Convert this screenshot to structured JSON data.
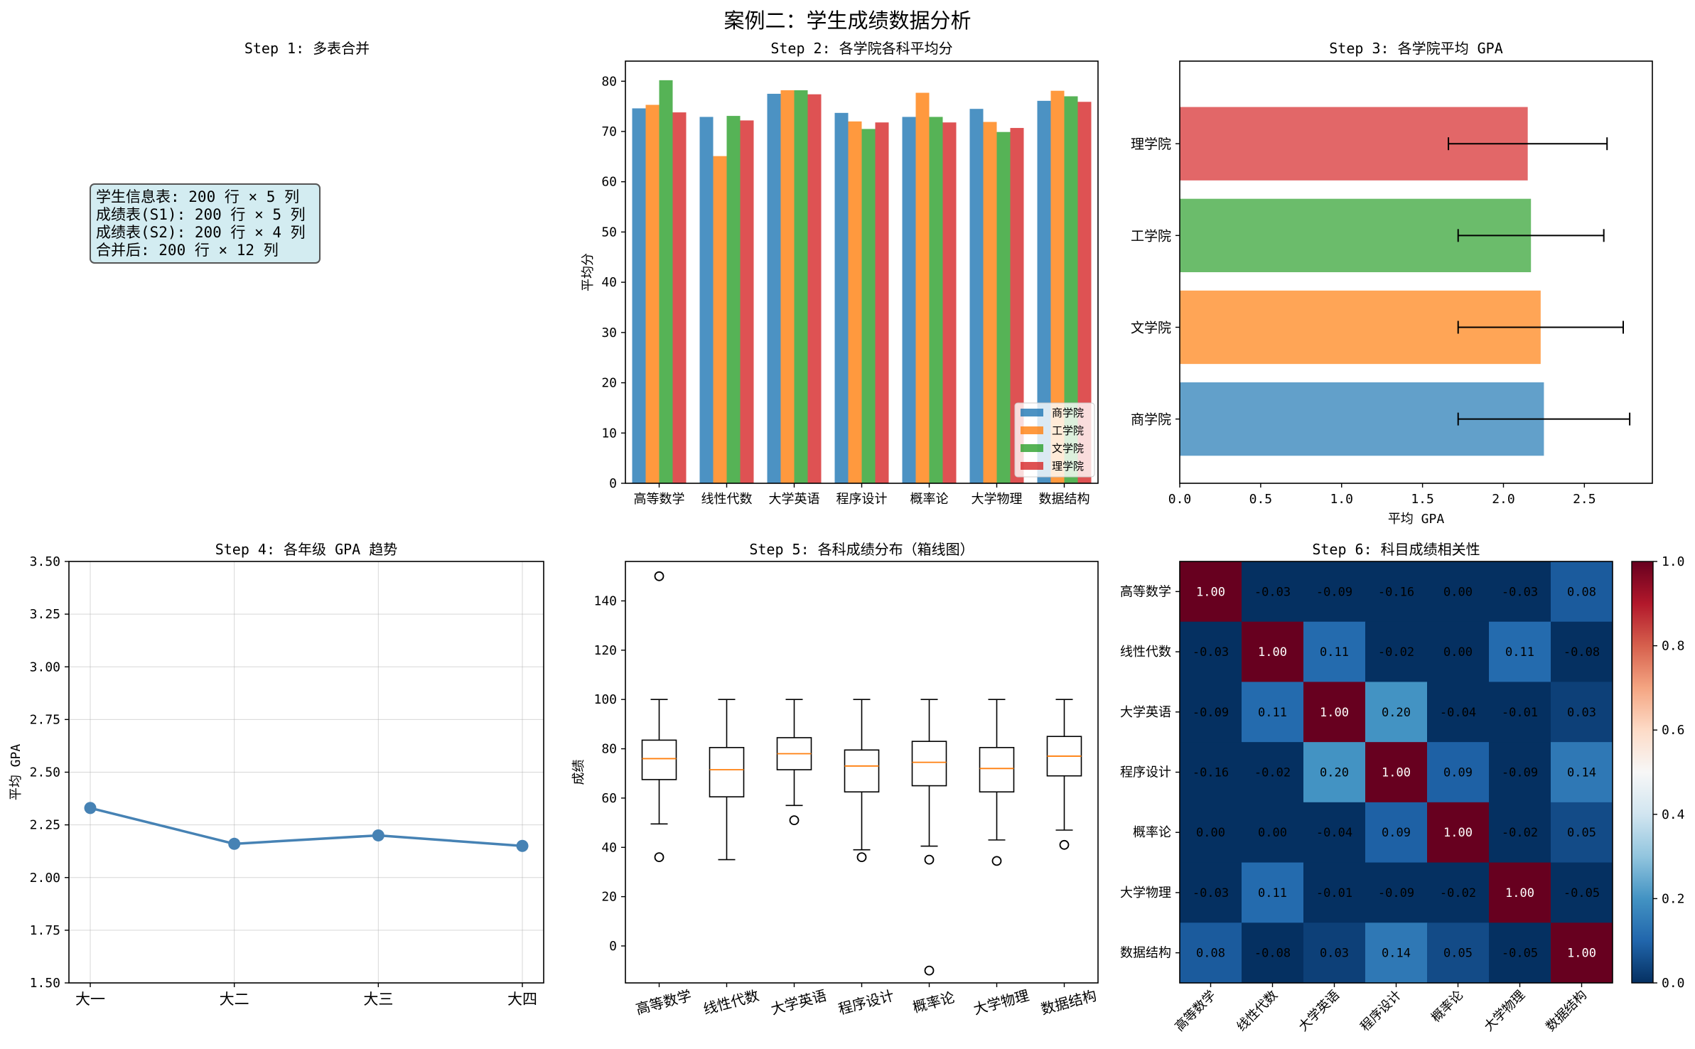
{
  "figure_title": "案例二：学生成绩数据分析",
  "colleges": [
    "商学院",
    "工学院",
    "文学院",
    "理学院"
  ],
  "subjects": [
    "高等数学",
    "线性代数",
    "大学英语",
    "程序设计",
    "概率论",
    "大学物理",
    "数据结构"
  ],
  "colors": {
    "college": [
      "#1f77b4",
      "#ff7f0e",
      "#2ca02c",
      "#d62728"
    ],
    "line": "#4682b4",
    "median": "#ff7f0e"
  },
  "chart_data": [
    {
      "type": "table",
      "title": "Step 1: 多表合并",
      "lines": [
        "学生信息表: 200 行 × 5 列",
        "成绩表(S1): 200 行 × 5 列",
        "成绩表(S2): 200 行 × 4 列",
        "",
        "合并后: 200 行 × 12 列"
      ]
    },
    {
      "type": "bar",
      "title": "Step 2: 各学院各科平均分",
      "ylabel": "平均分",
      "xlabel": "",
      "ylim": [
        0,
        84
      ],
      "yticks": [
        0,
        10,
        20,
        30,
        40,
        50,
        60,
        70,
        80
      ],
      "categories": [
        "高等数学",
        "线性代数",
        "大学英语",
        "程序设计",
        "概率论",
        "大学物理",
        "数据结构"
      ],
      "legend": "lower right",
      "series": [
        {
          "name": "商学院",
          "values": [
            74.6,
            72.9,
            77.5,
            73.7,
            72.9,
            74.5,
            76.1
          ]
        },
        {
          "name": "工学院",
          "values": [
            75.3,
            65.1,
            78.2,
            72.0,
            77.7,
            71.9,
            78.1
          ]
        },
        {
          "name": "文学院",
          "values": [
            80.2,
            73.1,
            78.2,
            70.5,
            72.9,
            69.9,
            77.0
          ]
        },
        {
          "name": "理学院",
          "values": [
            73.8,
            72.2,
            77.4,
            71.8,
            71.8,
            70.7,
            75.9
          ]
        }
      ]
    },
    {
      "type": "bar",
      "title": "Step 3: 各学院平均 GPA",
      "orientation": "horizontal",
      "xlabel": "平均 GPA",
      "ylabel": "",
      "xlim": [
        0,
        2.92
      ],
      "xticks": [
        "0.0",
        "0.5",
        "1.0",
        "1.5",
        "2.0",
        "2.5"
      ],
      "categories": [
        "商学院",
        "文学院",
        "工学院",
        "理学院"
      ],
      "values": [
        2.25,
        2.23,
        2.17,
        2.15
      ],
      "errors": [
        0.53,
        0.51,
        0.45,
        0.49
      ]
    },
    {
      "type": "line",
      "title": "Step 4: 各年级 GPA 趋势",
      "ylabel": "平均 GPA",
      "xlabel": "",
      "ylim": [
        1.5,
        3.5
      ],
      "yticks": [
        "1.50",
        "1.75",
        "2.00",
        "2.25",
        "2.50",
        "2.75",
        "3.00",
        "3.25",
        "3.50"
      ],
      "grid": true,
      "x": [
        "大一",
        "大二",
        "大三",
        "大四"
      ],
      "y": [
        2.33,
        2.16,
        2.2,
        2.15
      ]
    },
    {
      "type": "box",
      "title": "Step 5: 各科成绩分布（箱线图）",
      "ylabel": "成绩",
      "xlabel": "",
      "ylim": [
        -15,
        156
      ],
      "yticks": [
        0,
        20,
        40,
        60,
        80,
        100,
        120,
        140
      ],
      "categories": [
        "高等数学",
        "线性代数",
        "大学英语",
        "程序设计",
        "概率论",
        "大学物理",
        "数据结构"
      ],
      "boxes": [
        {
          "q1": 67.5,
          "median": 76,
          "q3": 83.5,
          "low": 49.5,
          "high": 100,
          "outliers": [
            36,
            150
          ]
        },
        {
          "q1": 60.5,
          "median": 71.5,
          "q3": 80.5,
          "low": 35,
          "high": 100,
          "outliers": []
        },
        {
          "q1": 71.5,
          "median": 78,
          "q3": 84.5,
          "low": 57,
          "high": 100,
          "outliers": [
            51
          ]
        },
        {
          "q1": 62.5,
          "median": 73,
          "q3": 79.5,
          "low": 39,
          "high": 100,
          "outliers": [
            36
          ]
        },
        {
          "q1": 65,
          "median": 74.5,
          "q3": 83,
          "low": 40.5,
          "high": 100,
          "outliers": [
            35,
            -10
          ]
        },
        {
          "q1": 62.5,
          "median": 72,
          "q3": 80.5,
          "low": 43,
          "high": 100,
          "outliers": [
            34.5
          ]
        },
        {
          "q1": 69,
          "median": 77,
          "q3": 85,
          "low": 47,
          "high": 100,
          "outliers": [
            41
          ]
        }
      ]
    },
    {
      "type": "heatmap",
      "title": "Step 6: 科目成绩相关性",
      "labels": [
        "高等数学",
        "线性代数",
        "大学英语",
        "程序设计",
        "概率论",
        "大学物理",
        "数据结构"
      ],
      "colormap": "RdBu_r",
      "range": [
        0,
        1
      ],
      "colorbar_ticks": [
        "0.0",
        "0.2",
        "0.4",
        "0.6",
        "0.8",
        "1.0"
      ],
      "matrix": [
        [
          1.0,
          -0.03,
          -0.09,
          -0.16,
          -0.0,
          -0.03,
          0.08
        ],
        [
          -0.03,
          1.0,
          0.11,
          -0.02,
          -0.0,
          0.11,
          -0.08
        ],
        [
          -0.09,
          0.11,
          1.0,
          0.2,
          -0.04,
          -0.01,
          0.03
        ],
        [
          -0.16,
          -0.02,
          0.2,
          1.0,
          0.09,
          -0.09,
          0.14
        ],
        [
          -0.0,
          -0.0,
          -0.04,
          0.09,
          1.0,
          -0.02,
          0.05
        ],
        [
          -0.03,
          0.11,
          -0.01,
          -0.09,
          -0.02,
          1.0,
          -0.05
        ],
        [
          0.08,
          -0.08,
          0.03,
          0.14,
          0.05,
          -0.05,
          1.0
        ]
      ]
    }
  ]
}
